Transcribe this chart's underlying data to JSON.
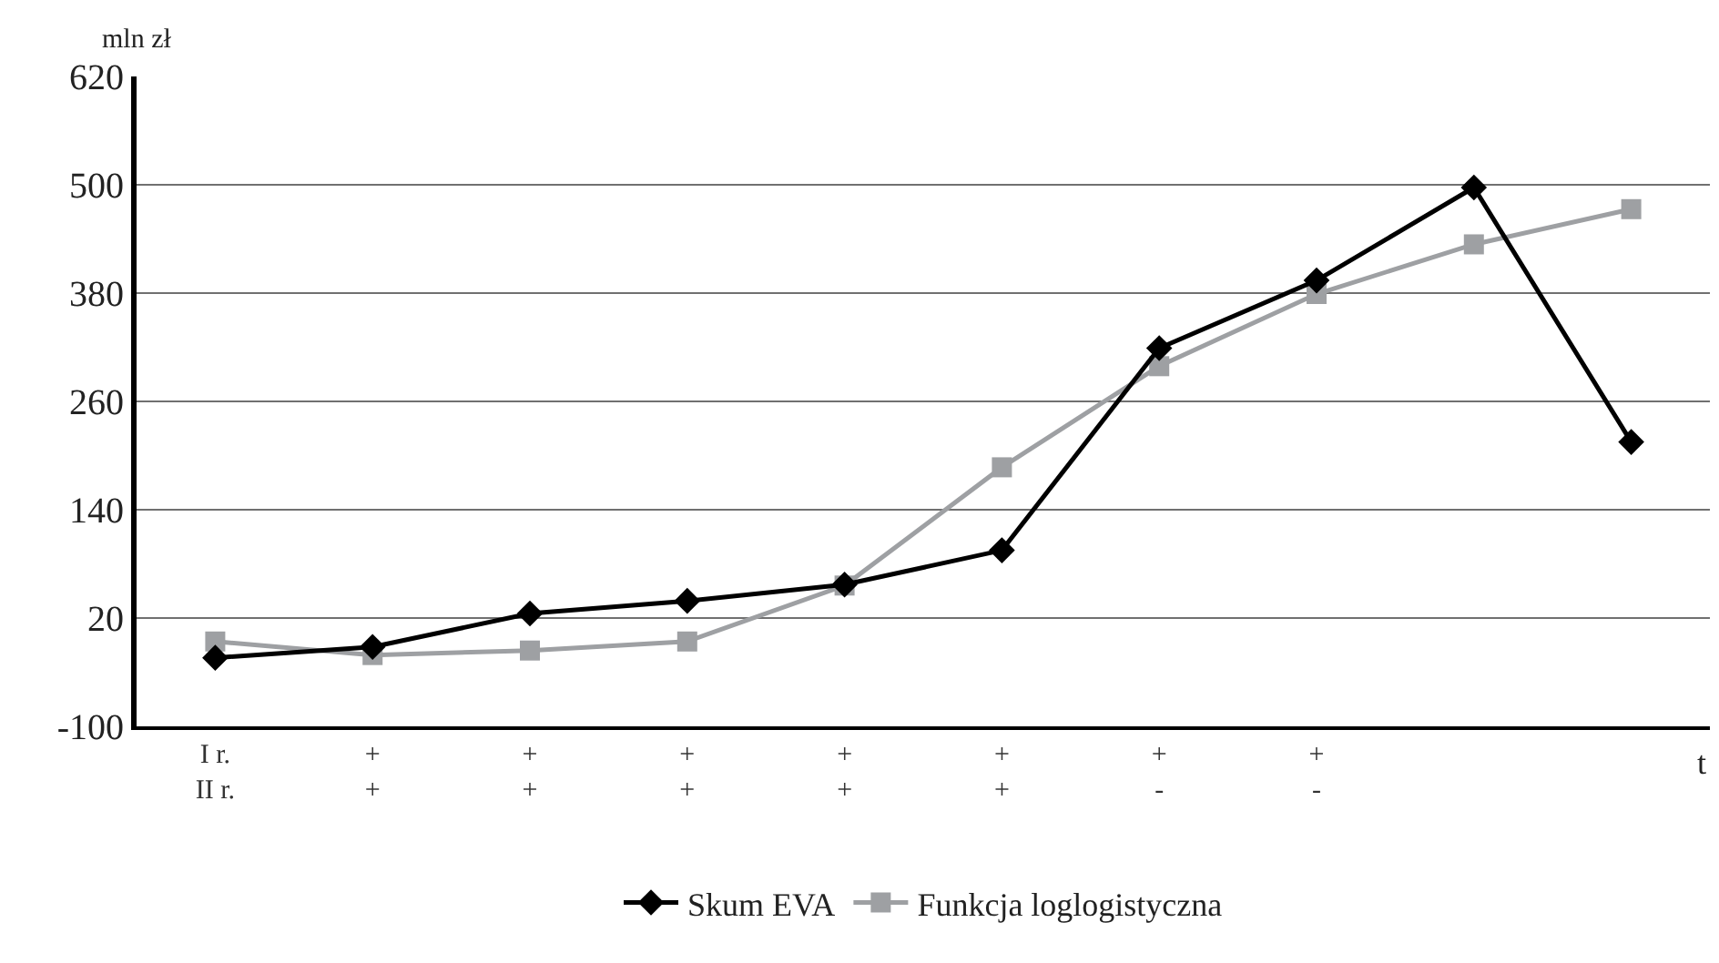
{
  "chart_data": {
    "type": "line",
    "ylabel": "mln zł",
    "xlabel": "t",
    "categories": [
      "I r.\nII r.",
      "+\n+",
      "+\n+",
      "+\n+",
      "+\n+",
      "+\n+",
      "+\n-",
      "+\n-",
      null,
      null
    ],
    "series": [
      {
        "name": "Skum EVA",
        "color": "#000000",
        "marker": "diamond",
        "values": [
          -24,
          -12,
          25,
          39,
          57,
          95,
          319,
          394,
          497,
          215
        ]
      },
      {
        "name": "Funkcja loglogistyczna",
        "color": "#9ea0a3",
        "marker": "square",
        "values": [
          -6,
          -21,
          -16,
          -6,
          56,
          187,
          299,
          379,
          434,
          473
        ]
      }
    ],
    "ylim": [
      -100,
      620
    ],
    "yticks": [
      -100,
      20,
      140,
      260,
      380,
      500,
      620
    ],
    "grid": "y",
    "legend": "bottom",
    "line_style": "solid"
  }
}
